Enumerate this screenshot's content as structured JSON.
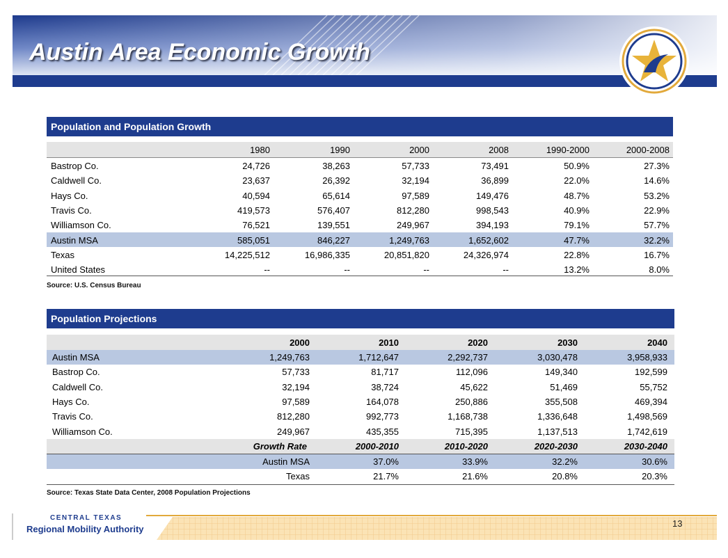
{
  "header": {
    "title": "Austin Area Economic Growth"
  },
  "table1": {
    "title": "Population and Population Growth",
    "columns": [
      "1980",
      "1990",
      "2000",
      "2008",
      "1990-2000",
      "2000-2008"
    ],
    "rows": [
      [
        "Bastrop Co.",
        "24,726",
        "38,263",
        "57,733",
        "73,491",
        "50.9%",
        "27.3%"
      ],
      [
        "Caldwell Co.",
        "23,637",
        "26,392",
        "32,194",
        "36,899",
        "22.0%",
        "14.6%"
      ],
      [
        "Hays Co.",
        "40,594",
        "65,614",
        "97,589",
        "149,476",
        "48.7%",
        "53.2%"
      ],
      [
        "Travis Co.",
        "419,573",
        "576,407",
        "812,280",
        "998,543",
        "40.9%",
        "22.9%"
      ],
      [
        "Williamson Co.",
        "76,521",
        "139,551",
        "249,967",
        "394,193",
        "79.1%",
        "57.7%"
      ],
      [
        "Austin MSA",
        "585,051",
        "846,227",
        "1,249,763",
        "1,652,602",
        "47.7%",
        "32.2%"
      ],
      [
        "Texas",
        "14,225,512",
        "16,986,335",
        "20,851,820",
        "24,326,974",
        "22.8%",
        "16.7%"
      ],
      [
        "United States",
        "--",
        "--",
        "--",
        "--",
        "13.2%",
        "8.0%"
      ]
    ],
    "source": "Source: U.S. Census Bureau"
  },
  "table2": {
    "title": "Population Projections",
    "columns": [
      "2000",
      "2010",
      "2020",
      "2030",
      "2040"
    ],
    "rows": [
      [
        "Austin MSA",
        "1,249,763",
        "1,712,647",
        "2,292,737",
        "3,030,478",
        "3,958,933"
      ],
      [
        "Bastrop Co.",
        "57,733",
        "81,717",
        "112,096",
        "149,340",
        "192,599"
      ],
      [
        "Caldwell Co.",
        "32,194",
        "38,724",
        "45,622",
        "51,469",
        "55,752"
      ],
      [
        "Hays Co.",
        "97,589",
        "164,078",
        "250,886",
        "355,508",
        "469,394"
      ],
      [
        "Travis Co.",
        "812,280",
        "992,773",
        "1,168,738",
        "1,336,648",
        "1,498,569"
      ],
      [
        "Williamson Co.",
        "249,967",
        "435,355",
        "715,395",
        "1,137,513",
        "1,742,619"
      ]
    ],
    "growth_header": [
      "Growth Rate",
      "2000-2010",
      "2010-2020",
      "2020-2030",
      "2030-2040"
    ],
    "growth_rows": [
      [
        "Austin MSA",
        "37.0%",
        "33.9%",
        "32.2%",
        "30.6%"
      ],
      [
        "Texas",
        "21.7%",
        "21.6%",
        "20.8%",
        "20.3%"
      ]
    ],
    "source": "Source: Texas State Data Center, 2008 Population Projections"
  },
  "footer": {
    "org_line1": "CENTRAL TEXAS",
    "org_line2": "Regional Mobility Authority",
    "page_number": "13"
  }
}
